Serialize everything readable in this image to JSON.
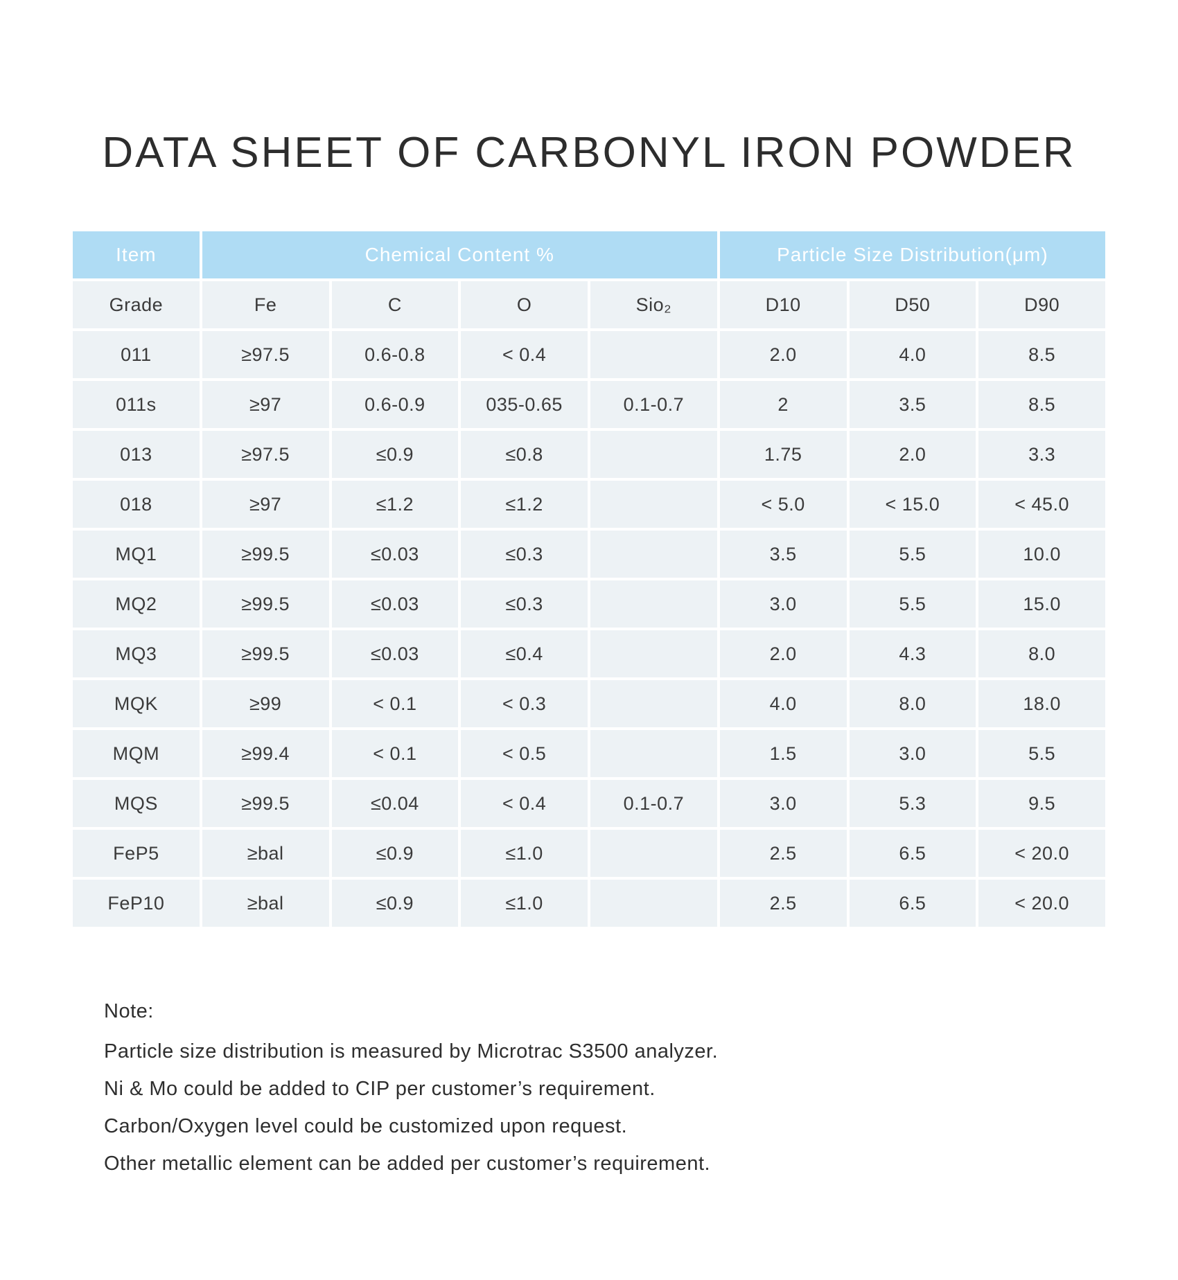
{
  "title": "DATA SHEET OF CARBONYL IRON POWDER",
  "colors": {
    "header_bg": "#afdcf4",
    "cell_bg": "#edf2f5"
  },
  "table": {
    "header_groups": [
      {
        "label": "Item",
        "span": 1
      },
      {
        "label": "Chemical Content %",
        "span": 4
      },
      {
        "label": "Particle Size Distribution(μm)",
        "span": 3
      }
    ],
    "columns": [
      "Grade",
      "Fe",
      "C",
      "O",
      "Sio₂",
      "D10",
      "D50",
      "D90"
    ],
    "rows": [
      {
        "cells": [
          "011",
          "≥97.5",
          "0.6-0.8",
          "< 0.4",
          "",
          "2.0",
          "4.0",
          "8.5"
        ]
      },
      {
        "cells": [
          "011s",
          "≥97",
          "0.6-0.9",
          "035-0.65",
          "0.1-0.7",
          "2",
          "3.5",
          "8.5"
        ]
      },
      {
        "cells": [
          "013",
          "≥97.5",
          "≤0.9",
          "≤0.8",
          "",
          "1.75",
          "2.0",
          "3.3"
        ]
      },
      {
        "cells": [
          "018",
          "≥97",
          "≤1.2",
          "≤1.2",
          "",
          "< 5.0",
          "< 15.0",
          "< 45.0"
        ]
      },
      {
        "cells": [
          "MQ1",
          "≥99.5",
          "≤0.03",
          "≤0.3",
          "",
          "3.5",
          "5.5",
          "10.0"
        ]
      },
      {
        "cells": [
          "MQ2",
          "≥99.5",
          "≤0.03",
          "≤0.3",
          "",
          "3.0",
          "5.5",
          "15.0"
        ]
      },
      {
        "cells": [
          "MQ3",
          "≥99.5",
          "≤0.03",
          "≤0.4",
          "",
          "2.0",
          "4.3",
          "8.0"
        ]
      },
      {
        "cells": [
          "MQK",
          "≥99",
          "< 0.1",
          "< 0.3",
          "",
          "4.0",
          "8.0",
          "18.0"
        ]
      },
      {
        "cells": [
          "MQM",
          "≥99.4",
          "< 0.1",
          "< 0.5",
          "",
          "1.5",
          "3.0",
          "5.5"
        ]
      },
      {
        "cells": [
          "MQS",
          "≥99.5",
          "≤0.04",
          "< 0.4",
          "0.1-0.7",
          "3.0",
          "5.3",
          "9.5"
        ]
      },
      {
        "cells": [
          "FeP5",
          "≥bal",
          "≤0.9",
          "≤1.0",
          "",
          "2.5",
          "6.5",
          "< 20.0"
        ]
      },
      {
        "cells": [
          "FeP10",
          "≥bal",
          "≤0.9",
          "≤1.0",
          "",
          "2.5",
          "6.5",
          "< 20.0"
        ]
      }
    ]
  },
  "notes": {
    "label": "Note:",
    "lines": [
      "Particle size distribution is measured by Microtrac S3500 analyzer.",
      "Ni & Mo could be added to CIP per customer’s requirement.",
      "Carbon/Oxygen level could be customized upon request.",
      "Other metallic element can be added per customer’s  requirement."
    ]
  }
}
